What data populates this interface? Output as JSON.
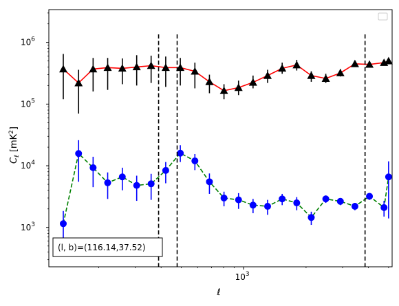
{
  "chart_data": {
    "type": "line",
    "title": "",
    "xlabel": "ℓ",
    "ylabel_main": "C",
    "ylabel_sub": "ℓ",
    "ylabel_unit": "[mK",
    "ylabel_unit_sup": "2",
    "ylabel_unit_end": "]",
    "xscale": "log",
    "yscale": "log",
    "xlim": [
      115,
      5200
    ],
    "ylim": [
      230,
      3400000
    ],
    "x_ticks": [
      {
        "value": 1000,
        "base": "10",
        "exp": "3"
      }
    ],
    "y_ticks": [
      {
        "value": 1000,
        "base": "10",
        "exp": "3"
      },
      {
        "value": 10000,
        "base": "10",
        "exp": "4"
      },
      {
        "value": 100000,
        "base": "10",
        "exp": "5"
      },
      {
        "value": 1000000,
        "base": "10",
        "exp": "6"
      }
    ],
    "vlines_x": [
      389,
      478,
      3850
    ],
    "legend": "top-right",
    "annotation": "(l, b)=(116.14,37.52)",
    "series": [
      {
        "color": "#ff0000",
        "marker": "triangle",
        "marker_color": "#000000",
        "linestyle": "solid",
        "x": [
          135,
          160,
          188,
          221,
          260,
          305,
          358,
          421,
          495,
          582,
          684,
          804,
          945,
          1110,
          1305,
          1534,
          1803,
          2119,
          2490,
          2927,
          3440,
          4043,
          4753,
          5000
        ],
        "y": [
          370000,
          220000,
          370000,
          390000,
          380000,
          400000,
          420000,
          390000,
          390000,
          340000,
          230000,
          165000,
          185000,
          225000,
          290000,
          380000,
          430000,
          290000,
          260000,
          320000,
          450000,
          440000,
          470000,
          500000
        ],
        "err_low": [
          120000,
          70000,
          160000,
          170000,
          210000,
          200000,
          220000,
          190000,
          200000,
          180000,
          150000,
          120000,
          140000,
          180000,
          220000,
          310000,
          350000,
          230000,
          220000,
          280000,
          420000,
          400000,
          440000,
          480000
        ],
        "err_high": [
          650000,
          360000,
          560000,
          560000,
          550000,
          620000,
          610000,
          590000,
          560000,
          470000,
          300000,
          210000,
          240000,
          290000,
          360000,
          470000,
          520000,
          340000,
          310000,
          370000,
          500000,
          490000,
          510000,
          540000
        ]
      },
      {
        "color": "#008000",
        "marker": "circle",
        "marker_color": "#0000ff",
        "linestyle": "dashed",
        "x": [
          135,
          160,
          188,
          221,
          260,
          305,
          358,
          421,
          495,
          582,
          684,
          804,
          945,
          1110,
          1305,
          1534,
          1803,
          2119,
          2490,
          2927,
          3440,
          4043,
          4753,
          5000
        ],
        "y": [
          1150,
          15800,
          9300,
          5300,
          6600,
          4800,
          5100,
          8400,
          16000,
          12000,
          5500,
          3000,
          2800,
          2300,
          2200,
          2900,
          2500,
          1450,
          2900,
          2650,
          2200,
          3200,
          2100,
          6600
        ],
        "err_low": [
          600,
          5500,
          4500,
          2900,
          4000,
          2700,
          2800,
          5200,
          11500,
          8500,
          3500,
          2200,
          2000,
          1700,
          1600,
          2300,
          1900,
          1100,
          2500,
          2300,
          1900,
          2800,
          1500,
          1400
        ],
        "err_high": [
          1850,
          26000,
          14000,
          7800,
          9300,
          6900,
          7400,
          11500,
          21500,
          15500,
          7500,
          3800,
          3600,
          2900,
          2800,
          3500,
          3100,
          1800,
          3300,
          3000,
          2500,
          3600,
          2700,
          11800
        ]
      }
    ]
  }
}
